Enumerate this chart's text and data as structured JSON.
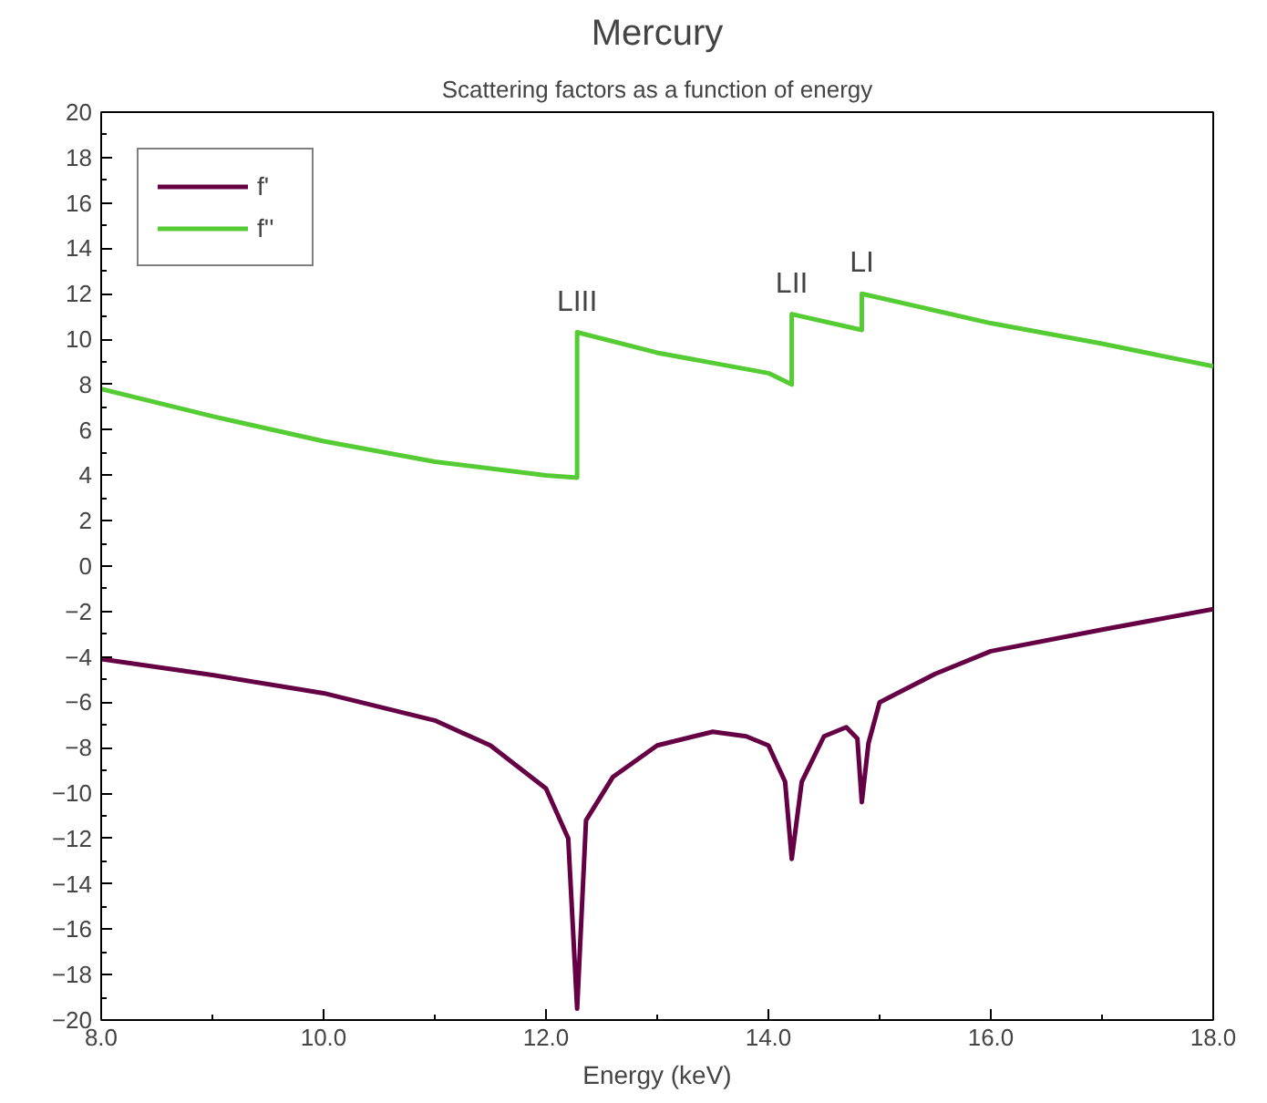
{
  "chart_data": {
    "type": "line",
    "title": "Mercury",
    "subtitle": "Scattering factors as a function of energy",
    "xlabel": "Energy (keV)",
    "xlim": [
      8.0,
      18.0
    ],
    "xticks": [
      {
        "value": 8,
        "label": "8.0"
      },
      {
        "value": 10,
        "label": "10.0"
      },
      {
        "value": 12,
        "label": "12.0"
      },
      {
        "value": 14,
        "label": "14.0"
      },
      {
        "value": 16,
        "label": "16.0"
      },
      {
        "value": 18,
        "label": "18.0"
      }
    ],
    "ylim": [
      -20,
      20
    ],
    "yticks": [
      -20,
      -18,
      -16,
      -14,
      -12,
      -10,
      -8,
      -6,
      -4,
      -2,
      0,
      2,
      4,
      6,
      8,
      10,
      12,
      14,
      16,
      18,
      20
    ],
    "grid": false,
    "legend": "top left",
    "line_style": "solid",
    "marker": "none",
    "series": [
      {
        "name": "f'",
        "color": "#660044",
        "x": [
          8.0,
          9.0,
          10.0,
          11.0,
          11.5,
          12.0,
          12.2,
          12.28,
          12.36,
          12.6,
          13.0,
          13.5,
          13.8,
          14.0,
          14.15,
          14.21,
          14.3,
          14.5,
          14.7,
          14.8,
          14.84,
          14.9,
          15.0,
          15.5,
          16.0,
          17.0,
          18.0
        ],
        "values": [
          -4.1,
          -4.8,
          -5.6,
          -6.8,
          -7.9,
          -9.8,
          -12,
          -19.5,
          -11.2,
          -9.3,
          -7.9,
          -7.3,
          -7.5,
          -7.9,
          -9.5,
          -12.9,
          -9.5,
          -7.5,
          -7.1,
          -7.6,
          -10.4,
          -7.8,
          -6.0,
          -4.75,
          -3.75,
          -2.8,
          -1.9
        ]
      },
      {
        "name": "f''",
        "color": "#55cc33",
        "x": [
          8.0,
          9.0,
          10.0,
          11.0,
          12.0,
          12.28,
          12.28,
          13.0,
          14.0,
          14.21,
          14.21,
          14.84,
          14.84,
          16.0,
          17.0,
          18.0
        ],
        "values": [
          7.8,
          6.6,
          5.5,
          4.6,
          4.0,
          3.9,
          10.3,
          9.4,
          8.5,
          8.0,
          11.1,
          10.4,
          12.0,
          10.7,
          9.8,
          8.8
        ]
      }
    ],
    "annotations": [
      {
        "text": "LIII",
        "x": 12.28,
        "y": 10.3
      },
      {
        "text": "LII",
        "x": 14.21,
        "y": 11.1
      },
      {
        "text": "LI",
        "x": 14.84,
        "y": 12.0
      }
    ]
  }
}
